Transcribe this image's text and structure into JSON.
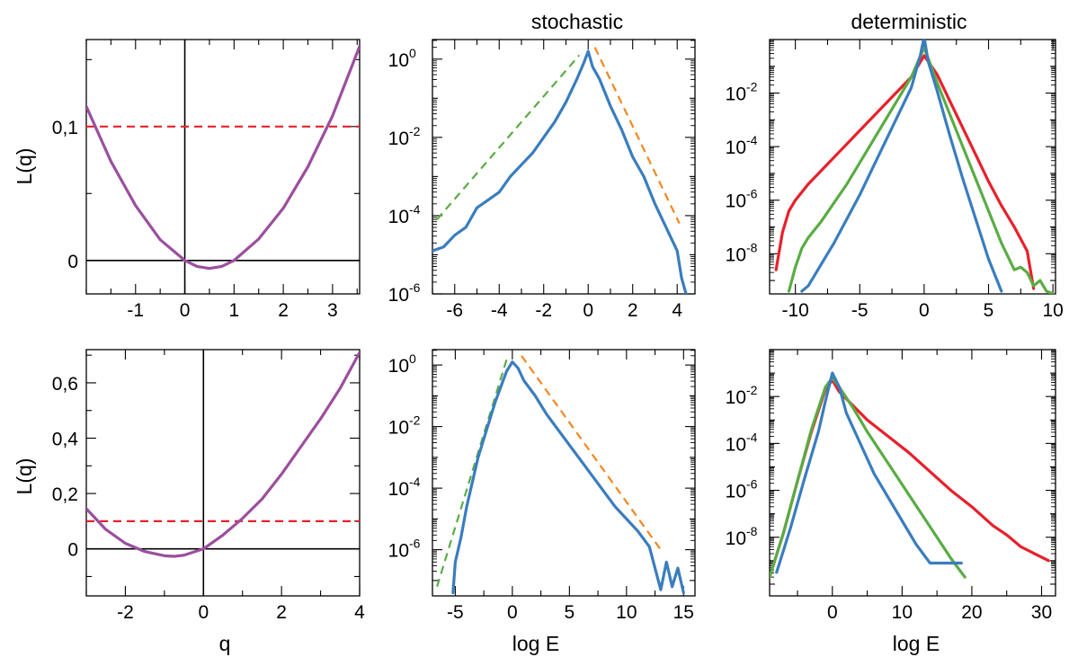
{
  "figure": {
    "header_stochastic": "stochastic",
    "header_deterministic": "deterministic",
    "ylabel_L": "L(q)",
    "xlabel_q": "q",
    "xlabel_logE": "log E"
  },
  "chart_data": [
    {
      "id": "top-left",
      "type": "line",
      "xlabel": "",
      "ylabel": "L(q)",
      "xlim": [
        -2,
        3.55
      ],
      "ylim": [
        -0.025,
        0.165
      ],
      "xticks": [
        -1,
        0,
        1,
        2,
        3
      ],
      "xtick_labels": [
        "-1",
        "0",
        "1",
        "2",
        "3"
      ],
      "yticks": [
        0,
        0.1
      ],
      "ytick_labels": [
        "0",
        "0,1"
      ],
      "vline_at": 0,
      "hline_at": 0,
      "series": [
        {
          "color": "#9b4f9e",
          "x": [
            -2,
            -1.5,
            -1,
            -0.5,
            0,
            0.25,
            0.5,
            0.75,
            1,
            1.5,
            2,
            2.5,
            3,
            3.55
          ],
          "y": [
            0.115,
            0.074,
            0.041,
            0.0155,
            0.0,
            -0.0045,
            -0.006,
            -0.0045,
            0.0,
            0.016,
            0.039,
            0.07,
            0.108,
            0.16
          ]
        }
      ],
      "dashed": [
        {
          "color": "#e8202a",
          "x": [
            -2,
            3.55
          ],
          "y": [
            0.1,
            0.1
          ]
        }
      ]
    },
    {
      "id": "top-middle",
      "header": "stochastic",
      "type": "line",
      "log_y": true,
      "xlabel": "",
      "ylim_exp": [
        -6,
        0.5
      ],
      "xlim": [
        -7,
        4.8
      ],
      "xticks": [
        -6,
        -4,
        -2,
        0,
        2,
        4
      ],
      "xtick_labels": [
        "-6",
        "-4",
        "-2",
        "0",
        "2",
        "4"
      ],
      "yticks_exp": [
        -6,
        -4,
        -2,
        0
      ],
      "ytick_labels": [
        "10",
        "10",
        "10",
        "10"
      ],
      "ytick_exponents": [
        "-6",
        "-4",
        "-2",
        "0"
      ],
      "series": [
        {
          "color": "#3a7dbf",
          "x": [
            -7,
            -6.5,
            -6,
            -5.5,
            -5,
            -4.5,
            -4,
            -3.5,
            -3,
            -2.5,
            -2,
            -1.5,
            -1,
            -0.5,
            -0.2,
            0,
            0.2,
            0.5,
            1,
            1.5,
            2,
            2.5,
            3,
            3.5,
            4,
            4.2,
            4.5
          ],
          "y": [
            -4.9,
            -4.8,
            -4.5,
            -4.3,
            -3.8,
            -3.6,
            -3.4,
            -3.0,
            -2.7,
            -2.4,
            -2.0,
            -1.6,
            -1.1,
            -0.5,
            -0.1,
            0.2,
            -0.2,
            -0.5,
            -1.2,
            -1.8,
            -2.5,
            -3.0,
            -3.7,
            -4.3,
            -4.9,
            -5.6,
            -6.2
          ]
        }
      ],
      "dashed": [
        {
          "color": "#5aac44",
          "x": [
            -6.8,
            -0.4
          ],
          "y": [
            -4.1,
            0.1
          ]
        },
        {
          "color": "#f5861f",
          "x": [
            0.3,
            4.1
          ],
          "y": [
            0.3,
            -4.2
          ]
        }
      ]
    },
    {
      "id": "top-right",
      "header": "deterministic",
      "type": "line",
      "log_y": true,
      "xlabel": "",
      "ylim_exp": [
        -9.5,
        0
      ],
      "xlim": [
        -12,
        10.2
      ],
      "xticks": [
        -10,
        -5,
        0,
        5,
        10
      ],
      "xtick_labels": [
        "-10",
        "-5",
        "0",
        "5",
        "10"
      ],
      "yticks_exp": [
        -8,
        -6,
        -4,
        -2
      ],
      "ytick_labels": [
        "10",
        "10",
        "10",
        "10"
      ],
      "ytick_exponents": [
        "-8",
        "-6",
        "-4",
        "-2"
      ],
      "series": [
        {
          "color": "#e8202a",
          "x": [
            -11.5,
            -11,
            -10.5,
            -10,
            -9,
            -8,
            -7,
            -6,
            -5,
            -4,
            -3,
            -2,
            -1,
            0,
            1,
            2,
            3,
            4,
            5,
            6,
            7,
            8,
            8.5
          ],
          "y": [
            -8.6,
            -7.2,
            -6.4,
            -6.0,
            -5.4,
            -4.9,
            -4.4,
            -3.9,
            -3.4,
            -2.9,
            -2.4,
            -1.9,
            -1.4,
            -0.6,
            -1.3,
            -2.3,
            -3.3,
            -4.3,
            -5.3,
            -6.2,
            -7.0,
            -7.9,
            -9.3
          ]
        },
        {
          "color": "#5aac44",
          "x": [
            -10.5,
            -10,
            -9.5,
            -9,
            -8,
            -7,
            -6,
            -5,
            -4,
            -3,
            -2,
            -1,
            0,
            1,
            2,
            3,
            4,
            5,
            6,
            7,
            7.5,
            8,
            8.5,
            9,
            9.5,
            10
          ],
          "y": [
            -9.4,
            -8.5,
            -7.8,
            -7.4,
            -6.8,
            -6.1,
            -5.4,
            -4.6,
            -3.8,
            -3.0,
            -2.2,
            -1.4,
            -0.3,
            -1.6,
            -2.8,
            -4.0,
            -5.2,
            -6.4,
            -7.6,
            -8.6,
            -8.5,
            -8.7,
            -9.2,
            -9.0,
            -9.4,
            -9.5
          ]
        },
        {
          "color": "#3a7dbf",
          "x": [
            -9.5,
            -9,
            -8.5,
            -8,
            -7,
            -6,
            -5,
            -4,
            -3,
            -2,
            -1,
            -0.3,
            0,
            0.3,
            1,
            2,
            3,
            4,
            5,
            5.5,
            6
          ],
          "y": [
            -9.4,
            -9.2,
            -8.8,
            -8.4,
            -7.6,
            -6.7,
            -5.8,
            -4.8,
            -3.8,
            -2.8,
            -1.8,
            -0.6,
            0.1,
            -0.8,
            -1.9,
            -3.6,
            -5.2,
            -6.7,
            -8.2,
            -8.8,
            -9.4
          ]
        }
      ]
    },
    {
      "id": "bottom-left",
      "type": "line",
      "xlabel": "q",
      "ylabel": "L(q)",
      "xlim": [
        -3,
        4
      ],
      "ylim": [
        -0.17,
        0.72
      ],
      "xticks": [
        -2,
        0,
        2,
        4
      ],
      "xtick_labels": [
        "-2",
        "0",
        "2",
        "4"
      ],
      "yticks": [
        0,
        0.2,
        0.4,
        0.6
      ],
      "ytick_labels": [
        "0",
        "0,2",
        "0,4",
        "0,6"
      ],
      "vline_at": 0,
      "hline_at": 0,
      "series": [
        {
          "color": "#9b4f9e",
          "x": [
            -3,
            -2.5,
            -2,
            -1.5,
            -1,
            -0.75,
            -0.5,
            0,
            0.5,
            1,
            1.5,
            2,
            2.5,
            3,
            3.5,
            4
          ],
          "y": [
            0.145,
            0.07,
            0.02,
            -0.01,
            -0.025,
            -0.027,
            -0.023,
            0.0,
            0.05,
            0.11,
            0.18,
            0.27,
            0.37,
            0.47,
            0.58,
            0.71
          ]
        }
      ],
      "dashed": [
        {
          "color": "#e8202a",
          "x": [
            -3,
            4
          ],
          "y": [
            0.1,
            0.1
          ]
        }
      ]
    },
    {
      "id": "bottom-middle",
      "type": "line",
      "log_y": true,
      "xlabel": "log E",
      "ylim_exp": [
        -7.5,
        0.5
      ],
      "xlim": [
        -7,
        16
      ],
      "xticks": [
        -5,
        0,
        5,
        10,
        15
      ],
      "xtick_labels": [
        "-5",
        "0",
        "5",
        "10",
        "15"
      ],
      "yticks_exp": [
        -6,
        -4,
        -2,
        0
      ],
      "ytick_labels": [
        "10",
        "10",
        "10",
        "10"
      ],
      "ytick_exponents": [
        "-6",
        "-4",
        "-2",
        "0"
      ],
      "series": [
        {
          "color": "#3a7dbf",
          "x": [
            -5.2,
            -5,
            -4.5,
            -4,
            -3.5,
            -3,
            -2.5,
            -2,
            -1.5,
            -1,
            -0.5,
            0,
            0.5,
            1,
            2,
            3,
            4,
            5,
            6,
            7,
            8,
            9,
            10,
            11,
            12,
            12.5,
            13,
            13.5,
            14,
            14.5,
            15
          ],
          "y": [
            -7.4,
            -6.4,
            -5.6,
            -4.6,
            -3.8,
            -3.0,
            -2.4,
            -1.8,
            -1.2,
            -0.7,
            -0.2,
            0.1,
            -0.1,
            -0.5,
            -1.0,
            -1.6,
            -2.1,
            -2.6,
            -3.1,
            -3.6,
            -4.1,
            -4.6,
            -5.0,
            -5.4,
            -5.9,
            -6.6,
            -7.3,
            -6.4,
            -7.2,
            -6.6,
            -7.4
          ]
        }
      ],
      "dashed": [
        {
          "color": "#5aac44",
          "x": [
            -6.6,
            -0.4
          ],
          "y": [
            -7.2,
            0.3
          ]
        },
        {
          "color": "#f5861f",
          "x": [
            0.8,
            13
          ],
          "y": [
            0.3,
            -6.0
          ]
        }
      ]
    },
    {
      "id": "bottom-right",
      "type": "line",
      "log_y": true,
      "xlabel": "log E",
      "ylim_exp": [
        -10.5,
        0
      ],
      "xlim": [
        -9,
        32
      ],
      "xticks": [
        0,
        10,
        20,
        30
      ],
      "xtick_labels": [
        "0",
        "10",
        "20",
        "30"
      ],
      "yticks_exp": [
        -8,
        -6,
        -4,
        -2
      ],
      "ytick_labels": [
        "10",
        "10",
        "10",
        "10"
      ],
      "ytick_exponents": [
        "-8",
        "-6",
        "-4",
        "-2"
      ],
      "series": [
        {
          "color": "#e8202a",
          "x": [
            -9,
            -7,
            -5,
            -3,
            -1,
            0,
            1,
            3,
            5,
            8,
            11,
            14,
            17,
            20,
            23,
            25,
            27,
            29,
            31
          ],
          "y": [
            -9.7,
            -7.8,
            -5.6,
            -3.5,
            -1.7,
            -1.3,
            -1.8,
            -2.4,
            -3.0,
            -3.7,
            -4.4,
            -5.2,
            -6.0,
            -6.7,
            -7.5,
            -7.9,
            -8.4,
            -8.7,
            -9.0
          ]
        },
        {
          "color": "#5aac44",
          "x": [
            -9,
            -7,
            -5,
            -3,
            -1,
            0,
            1,
            3,
            5,
            7,
            9,
            11,
            13,
            15,
            17,
            19
          ],
          "y": [
            -9.7,
            -7.8,
            -5.6,
            -3.4,
            -1.6,
            -1.2,
            -1.6,
            -2.5,
            -3.5,
            -4.4,
            -5.3,
            -6.2,
            -7.1,
            -8.0,
            -8.9,
            -9.7
          ]
        },
        {
          "color": "#3a7dbf",
          "x": [
            -8,
            -6,
            -4,
            -2,
            -1,
            0,
            1,
            2,
            4,
            6,
            8,
            10,
            12,
            14,
            16,
            18.5
          ],
          "y": [
            -9.5,
            -7.6,
            -5.5,
            -3.5,
            -2.2,
            -1.0,
            -1.6,
            -2.7,
            -4.0,
            -5.3,
            -6.3,
            -7.3,
            -8.3,
            -9.1,
            -9.1,
            -9.1
          ]
        }
      ]
    }
  ]
}
